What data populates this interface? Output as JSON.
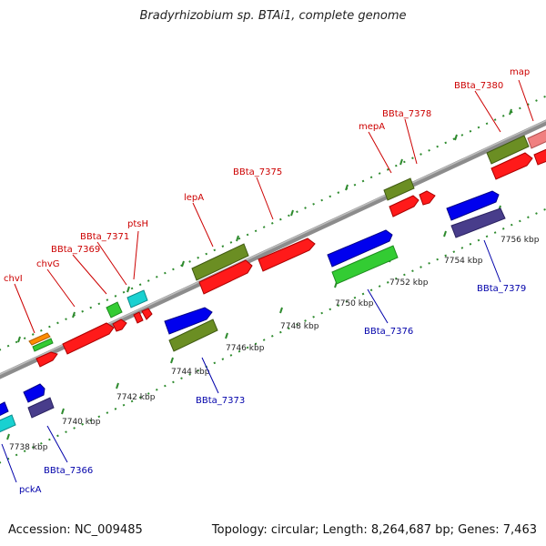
{
  "title": "Bradyrhizobium sp. BTAi1, complete genome",
  "footer": {
    "accession": "Accession: NC_009485",
    "summary": "Topology: circular; Length: 8,264,687 bp; Genes: 7,463"
  },
  "colors": {
    "backbone": "#8c8c8c",
    "tick": "#2e8b2e",
    "top_label": "#cc0000",
    "bottom_label": "#0000aa"
  },
  "scale_labels": [
    "7738 kbp",
    "7740 kbp",
    "7742 kbp",
    "7744 kbp",
    "7746 kbp",
    "7748 kbp",
    "7750 kbp",
    "7752 kbp",
    "7754 kbp",
    "7756 kbp"
  ],
  "top_gene_labels": [
    "chvI",
    "chvG",
    "BBta_7369",
    "BBta_7371",
    "ptsH",
    "lepA",
    "BBta_7375",
    "mepA",
    "BBta_7378",
    "BBta_7380",
    "map"
  ],
  "bottom_gene_labels": [
    "pckA",
    "BBta_7366",
    "BBta_7373",
    "BBta_7376",
    "BBta_7379"
  ]
}
